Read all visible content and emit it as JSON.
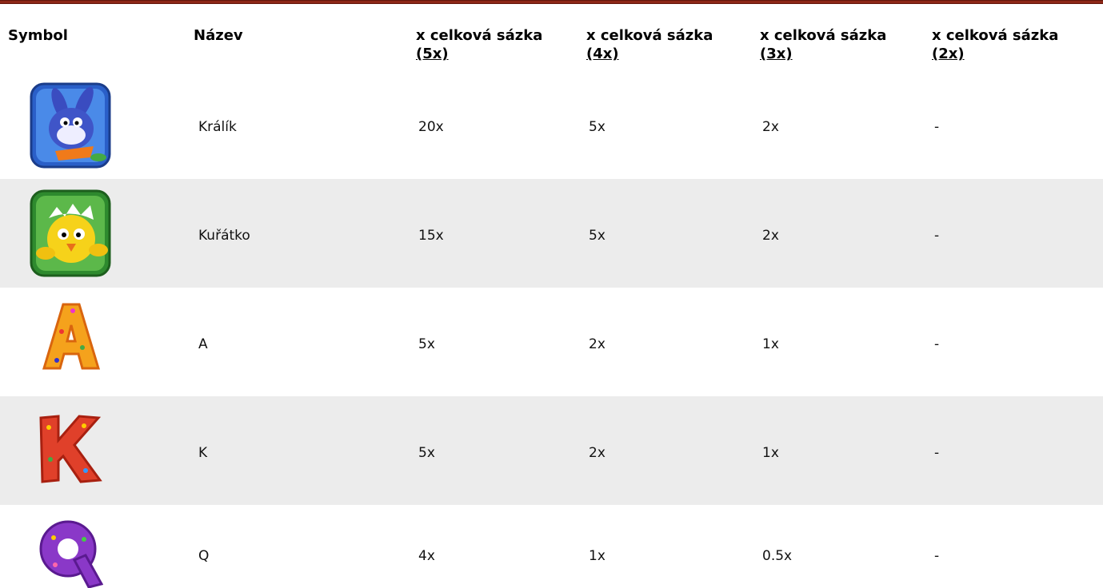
{
  "table": {
    "header": [
      "Symbol",
      "Název",
      {
        "line1": "x celková sázka",
        "line2": "(5x)"
      },
      {
        "line1": "x celková sázka",
        "line2": "(4x)"
      },
      {
        "line1": "x celková sázka",
        "line2": "(3x)"
      },
      {
        "line1": "x celková sázka",
        "line2": "(2x)"
      }
    ],
    "rows": [
      [
        "Králík",
        "20x",
        "5x",
        "2x",
        "-"
      ],
      [
        "Kuřátko",
        "15x",
        "5x",
        "2x",
        "-"
      ],
      [
        "A",
        "5x",
        "2x",
        "1x",
        "-"
      ],
      [
        "K",
        "5x",
        "2x",
        "1x",
        "-"
      ],
      [
        "Q",
        "4x",
        "1x",
        "0.5x",
        "-"
      ]
    ]
  }
}
